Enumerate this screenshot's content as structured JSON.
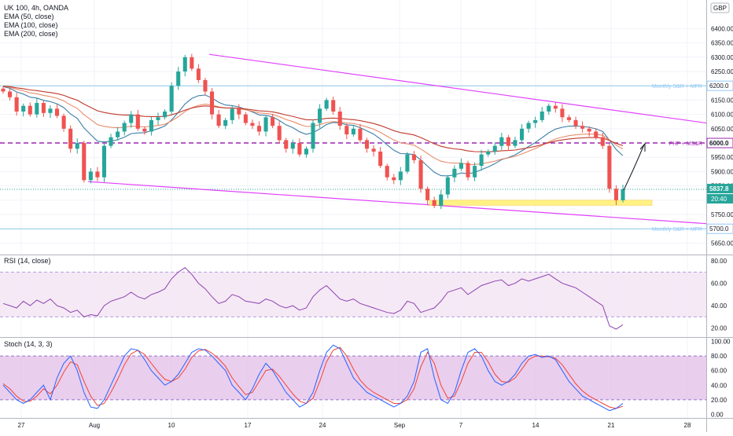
{
  "legend": {
    "symbol": "UK 100, 4h, OANDA",
    "ema50": "EMA (50, close)",
    "ema100": "EMA (100, close)",
    "ema200": "EMA (200, close)"
  },
  "indicators": {
    "rsi_label": "RSI (14, close)",
    "stoch_label": "Stoch (14, 3, 3)"
  },
  "currency": "GBP",
  "colors": {
    "bull": "#26a69a",
    "bear": "#ef5350",
    "ema50": "#3d7fa6",
    "ema100": "#e88c6a",
    "ema200": "#c0392b",
    "channel": "#e040fb",
    "level": "#8fc9e8",
    "fhp": "#9c27b0",
    "zone": "#fff176",
    "rsi": "#8e44ad",
    "stoch_k": "#2962ff",
    "stoch_d": "#f44336"
  },
  "chart_data": [
    {
      "type": "candlestick",
      "title": "UK 100, 4h, OANDA",
      "ylim": [
        5610,
        6500
      ],
      "y_ticks": [
        6400,
        6350,
        6300,
        6250,
        6200,
        6150,
        6100,
        6050,
        6000,
        5950,
        5900,
        5850,
        5800,
        5750,
        5700,
        5650
      ],
      "x_ticks": [
        "27",
        "Aug",
        "10",
        "17",
        "24",
        "Sep",
        "7",
        "14",
        "21",
        "28"
      ],
      "close_path": [
        6180,
        6160,
        6110,
        6130,
        6100,
        6140,
        6105,
        6120,
        6095,
        6050,
        5980,
        6000,
        5870,
        5900,
        5880,
        5990,
        6020,
        6040,
        6070,
        6100,
        6050,
        6040,
        6080,
        6090,
        6110,
        6200,
        6250,
        6300,
        6260,
        6220,
        6180,
        6100,
        6060,
        6080,
        6120,
        6100,
        6070,
        6060,
        6040,
        6090,
        6060,
        6010,
        5980,
        6000,
        5960,
        5980,
        6070,
        6120,
        6150,
        6110,
        6060,
        6030,
        6050,
        6010,
        5980,
        5970,
        5920,
        5880,
        5870,
        5900,
        5960,
        5940,
        5840,
        5800,
        5780,
        5820,
        5880,
        5910,
        5930,
        5880,
        5920,
        5960,
        5970,
        5990,
        6020,
        5990,
        6010,
        6050,
        6070,
        6080,
        6110,
        6130,
        6120,
        6090,
        6080,
        6060,
        6050,
        6040,
        6020,
        5990,
        5840,
        5800,
        5838
      ],
      "last_price": "5837.8",
      "countdown": "20:40",
      "annotations": [
        {
          "label": "Monthly S&R + MFR",
          "price": 6200
        },
        {
          "label": "FHP + MS&R",
          "price": 6000
        },
        {
          "label": "Monthly S&R + MFR",
          "price": 5700
        }
      ],
      "price_labels": [
        "6200.0",
        "6000.0",
        "5700.0"
      ],
      "channel": {
        "upper": [
          6310,
          6070
        ],
        "lower": [
          5865,
          5718
        ]
      },
      "support_zone": [
        5782,
        5800
      ]
    },
    {
      "type": "line",
      "name": "RSI (14, close)",
      "ylim": [
        12,
        85
      ],
      "y_ticks": [
        "80.00",
        "60.00",
        "40.00",
        "20.00"
      ],
      "bands": [
        70,
        30
      ],
      "values": [
        42,
        40,
        38,
        44,
        40,
        45,
        42,
        46,
        40,
        38,
        34,
        36,
        30,
        32,
        31,
        40,
        44,
        46,
        48,
        52,
        48,
        46,
        50,
        52,
        55,
        64,
        70,
        74,
        68,
        60,
        55,
        48,
        42,
        44,
        50,
        48,
        44,
        43,
        42,
        46,
        44,
        40,
        38,
        40,
        36,
        38,
        48,
        54,
        58,
        52,
        46,
        44,
        46,
        42,
        40,
        38,
        36,
        34,
        33,
        36,
        44,
        42,
        34,
        36,
        38,
        44,
        52,
        54,
        56,
        50,
        54,
        58,
        60,
        62,
        63,
        58,
        60,
        64,
        62,
        64,
        66,
        68,
        64,
        60,
        58,
        56,
        52,
        48,
        44,
        40,
        22,
        19,
        23
      ]
    },
    {
      "type": "line",
      "name": "Stoch (14, 3, 3)",
      "ylim": [
        -5,
        105
      ],
      "y_ticks": [
        "100.00",
        "80.00",
        "60.00",
        "40.00",
        "20.00",
        "0.00"
      ],
      "bands": [
        80,
        20
      ],
      "k": [
        40,
        30,
        20,
        15,
        20,
        30,
        40,
        20,
        50,
        70,
        80,
        60,
        30,
        10,
        8,
        20,
        40,
        60,
        80,
        90,
        88,
        75,
        60,
        50,
        40,
        45,
        55,
        70,
        85,
        90,
        88,
        80,
        70,
        60,
        40,
        30,
        20,
        35,
        55,
        70,
        60,
        45,
        30,
        20,
        10,
        15,
        30,
        60,
        85,
        95,
        90,
        70,
        50,
        40,
        30,
        25,
        20,
        15,
        10,
        15,
        25,
        45,
        85,
        90,
        50,
        20,
        15,
        30,
        60,
        85,
        90,
        80,
        60,
        45,
        40,
        45,
        55,
        70,
        80,
        82,
        78,
        80,
        75,
        60,
        45,
        35,
        25,
        20,
        15,
        10,
        5,
        8,
        15
      ],
      "d": [
        42,
        35,
        25,
        18,
        18,
        25,
        35,
        28,
        40,
        58,
        72,
        68,
        45,
        25,
        12,
        15,
        30,
        48,
        68,
        83,
        88,
        82,
        70,
        58,
        48,
        45,
        50,
        62,
        78,
        87,
        89,
        84,
        76,
        66,
        50,
        38,
        27,
        30,
        45,
        60,
        62,
        52,
        40,
        28,
        18,
        15,
        22,
        45,
        72,
        88,
        92,
        80,
        62,
        47,
        37,
        30,
        25,
        20,
        15,
        15,
        20,
        35,
        65,
        85,
        70,
        40,
        22,
        25,
        45,
        70,
        85,
        85,
        72,
        55,
        45,
        44,
        50,
        62,
        75,
        80,
        80,
        79,
        77,
        68,
        55,
        42,
        32,
        25,
        20,
        15,
        10,
        8,
        11
      ]
    }
  ]
}
